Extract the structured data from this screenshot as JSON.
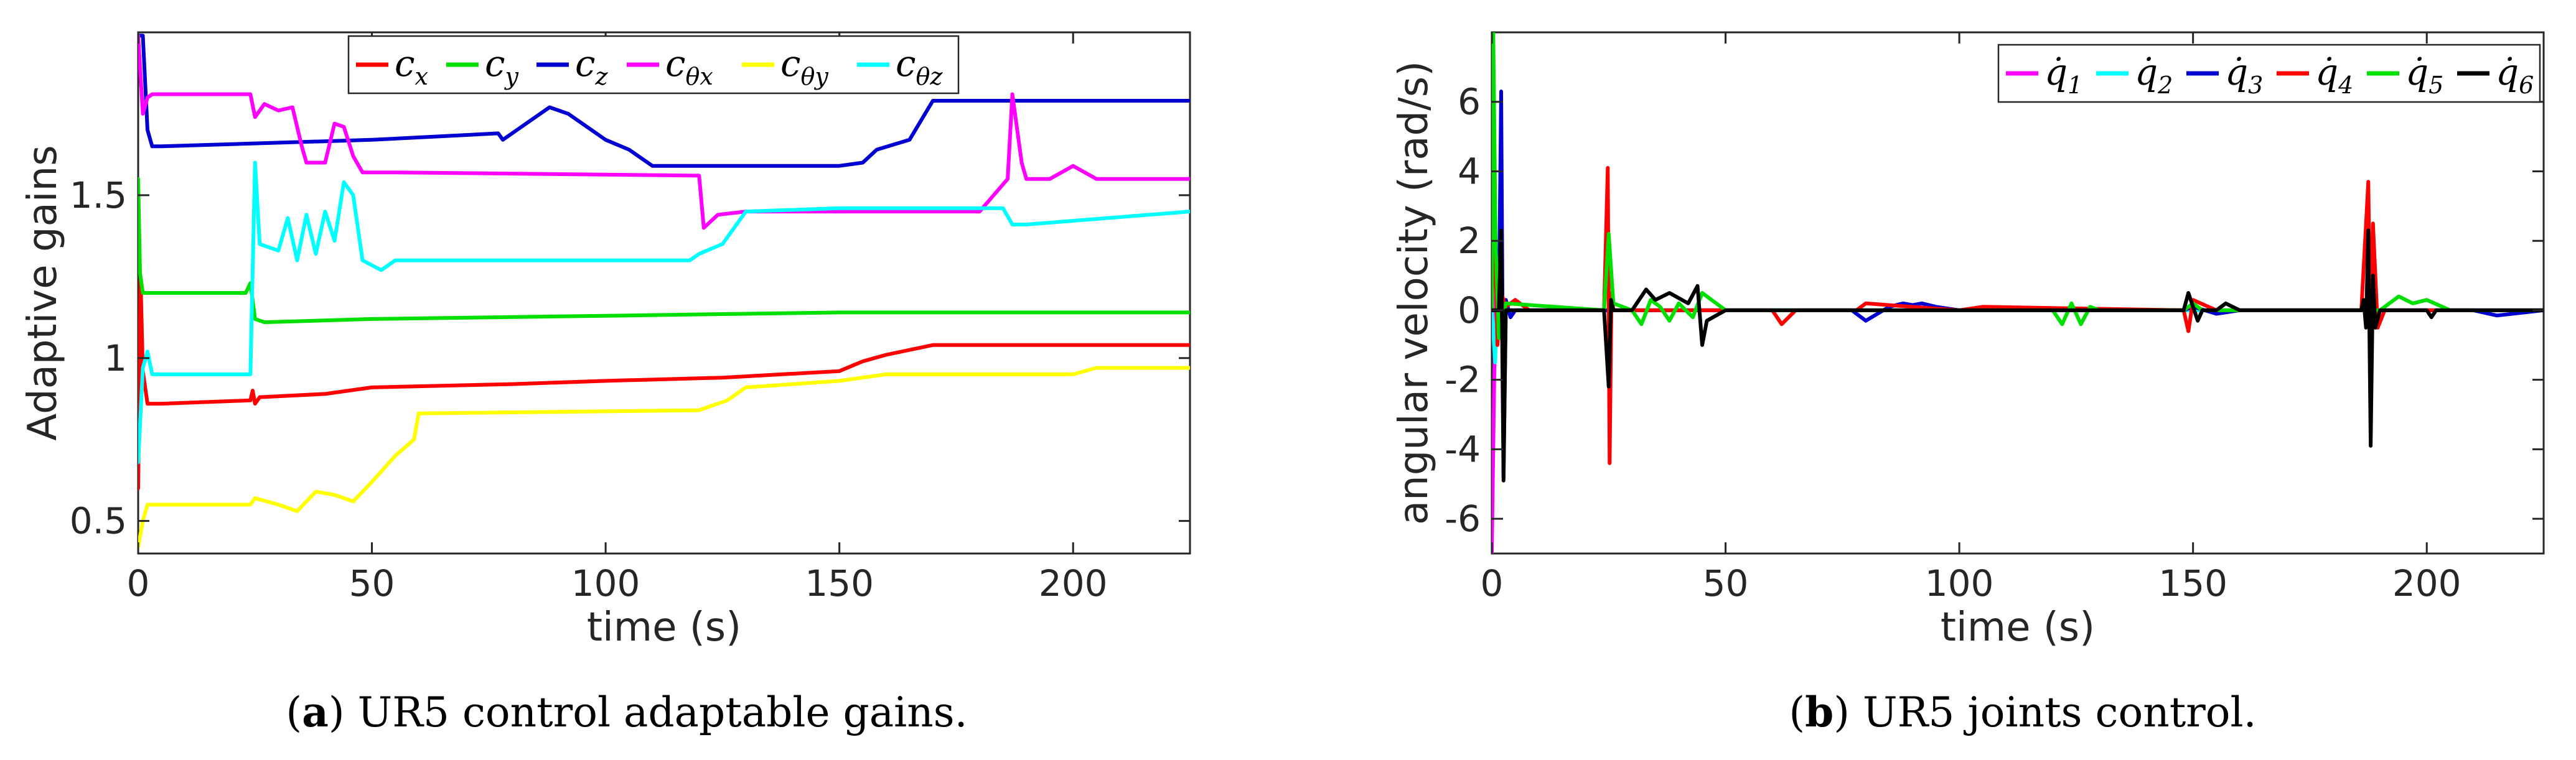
{
  "chart_data": [
    {
      "type": "line",
      "caption": {
        "letter": "a",
        "text": ") UR5 control adaptable gains."
      },
      "xlabel": "time (s)",
      "ylabel": "Adaptive gains",
      "xlim": [
        0,
        225
      ],
      "ylim": [
        0.4,
        2.0
      ],
      "xticks": [
        0,
        50,
        100,
        150,
        200
      ],
      "yticks": [
        0.5,
        1,
        1.5
      ],
      "ytick_labels": [
        "0.5",
        "1",
        "1.5"
      ],
      "legend_position": "top",
      "series": [
        {
          "name": "c_x",
          "sub": "x",
          "color": "#ff0000",
          "x": [
            0,
            0.5,
            1,
            2,
            5,
            24,
            24.5,
            25,
            26,
            40,
            50,
            80,
            100,
            125,
            150,
            155,
            160,
            170,
            225
          ],
          "y": [
            0.6,
            1.25,
            0.96,
            0.86,
            0.86,
            0.87,
            0.9,
            0.86,
            0.88,
            0.89,
            0.91,
            0.92,
            0.93,
            0.94,
            0.96,
            0.99,
            1.01,
            1.04,
            1.04
          ]
        },
        {
          "name": "c_y",
          "sub": "y",
          "color": "#00e000",
          "x": [
            0,
            0.4,
            1,
            3,
            23,
            24,
            25,
            27,
            50,
            100,
            150,
            225
          ],
          "y": [
            1.55,
            1.26,
            1.2,
            1.2,
            1.2,
            1.23,
            1.12,
            1.11,
            1.12,
            1.13,
            1.14,
            1.14
          ],
          "y_note": "starts near 1.55"
        },
        {
          "name": "c_z",
          "sub": "z",
          "color": "#0000d0",
          "x": [
            0,
            1,
            2,
            3,
            5,
            50,
            77,
            78,
            85,
            88,
            92,
            100,
            105,
            110,
            150,
            155,
            158,
            165,
            170,
            225
          ],
          "y": [
            1.99,
            1.99,
            1.7,
            1.65,
            1.65,
            1.67,
            1.69,
            1.67,
            1.74,
            1.77,
            1.75,
            1.67,
            1.64,
            1.59,
            1.59,
            1.6,
            1.64,
            1.67,
            1.79,
            1.79
          ]
        },
        {
          "name": "c_θx",
          "sub": "θx",
          "color": "#ff00ff",
          "x": [
            0,
            1,
            2,
            3,
            24,
            25,
            27,
            30,
            33,
            35,
            36,
            40,
            42,
            44,
            46,
            48,
            55,
            120,
            121,
            124,
            130,
            150,
            180,
            186,
            187,
            189,
            190,
            195,
            200,
            205,
            225
          ],
          "y": [
            1.99,
            1.75,
            1.8,
            1.81,
            1.81,
            1.74,
            1.78,
            1.76,
            1.77,
            1.65,
            1.6,
            1.6,
            1.72,
            1.71,
            1.62,
            1.57,
            1.57,
            1.56,
            1.4,
            1.44,
            1.45,
            1.45,
            1.45,
            1.55,
            1.81,
            1.6,
            1.55,
            1.55,
            1.59,
            1.55,
            1.55
          ]
        },
        {
          "name": "c_θy",
          "sub": "θy",
          "color": "#ffff00",
          "x": [
            0,
            1,
            2,
            5,
            24,
            25,
            30,
            34,
            38,
            42,
            46,
            50,
            55,
            59,
            60,
            120,
            126,
            130,
            150,
            160,
            200,
            205,
            225
          ],
          "y": [
            0.42,
            0.5,
            0.55,
            0.55,
            0.55,
            0.57,
            0.55,
            0.53,
            0.59,
            0.58,
            0.56,
            0.62,
            0.7,
            0.75,
            0.83,
            0.84,
            0.87,
            0.91,
            0.93,
            0.95,
            0.95,
            0.97,
            0.97
          ]
        },
        {
          "name": "c_θz",
          "sub": "θz",
          "color": "#00ffff",
          "x": [
            0,
            1,
            2,
            3,
            5,
            24,
            25,
            26,
            30,
            32,
            34,
            36,
            38,
            40,
            42,
            44,
            46,
            48,
            52,
            55,
            60,
            100,
            118,
            120,
            125,
            130,
            150,
            185,
            187,
            190,
            225
          ],
          "y": [
            0.68,
            0.97,
            1.02,
            0.95,
            0.95,
            0.95,
            1.6,
            1.35,
            1.33,
            1.43,
            1.3,
            1.44,
            1.32,
            1.45,
            1.36,
            1.54,
            1.5,
            1.3,
            1.27,
            1.3,
            1.3,
            1.3,
            1.3,
            1.32,
            1.35,
            1.45,
            1.46,
            1.46,
            1.41,
            1.41,
            1.45
          ]
        }
      ]
    },
    {
      "type": "line",
      "caption": {
        "letter": "b",
        "text": ") UR5 joints control."
      },
      "xlabel": "time (s)",
      "ylabel": "angular velocity (rad/s)",
      "xlim": [
        0,
        225
      ],
      "ylim": [
        -7,
        8
      ],
      "xticks": [
        0,
        50,
        100,
        150,
        200
      ],
      "yticks": [
        -6,
        -4,
        -2,
        0,
        2,
        4,
        6
      ],
      "ytick_labels": [
        "-6",
        "-4",
        "-2",
        "0",
        "2",
        "4",
        "6"
      ],
      "legend_position": "top-right",
      "series": [
        {
          "name": "q̇1",
          "sub": "1",
          "color": "#ff00ff",
          "x": [
            0,
            0.5,
            1,
            1.5,
            2,
            3,
            225
          ],
          "y": [
            -7,
            -2,
            1,
            -0.5,
            0.1,
            0,
            0
          ]
        },
        {
          "name": "q̇2",
          "sub": "2",
          "color": "#00ffff",
          "x": [
            0,
            0.7,
            1.3,
            2,
            3,
            225
          ],
          "y": [
            0,
            -1.5,
            1,
            -0.3,
            0,
            0
          ]
        },
        {
          "name": "q̇3",
          "sub": "3",
          "color": "#0000d0",
          "x": [
            0,
            1.5,
            2,
            2.5,
            3,
            4,
            5,
            25,
            77,
            80,
            85,
            88,
            90,
            92,
            95,
            100,
            148,
            150,
            155,
            160,
            210,
            215,
            225
          ],
          "y": [
            0,
            0,
            6.3,
            -4.8,
            0.3,
            -0.2,
            0,
            0,
            0,
            -0.3,
            0.1,
            0.2,
            0.15,
            0.2,
            0.1,
            0,
            0,
            0.1,
            -0.1,
            0,
            0,
            -0.15,
            0
          ]
        },
        {
          "name": "q̇4",
          "sub": "4",
          "color": "#ff0000",
          "x": [
            0,
            0.6,
            1.2,
            2,
            3,
            5,
            8,
            24,
            24.8,
            25.2,
            25.6,
            26,
            60,
            62,
            65,
            78,
            80,
            100,
            105,
            148,
            149,
            150,
            155,
            160,
            186,
            187.5,
            188,
            188.5,
            189.5,
            191,
            225
          ],
          "y": [
            0,
            3.2,
            -1,
            0.5,
            0.1,
            0.3,
            0,
            0,
            4.1,
            -4.4,
            0.5,
            0,
            0,
            -0.4,
            0,
            0,
            0.2,
            0,
            0.1,
            0,
            -0.6,
            0.3,
            0,
            0,
            0,
            3.7,
            -1.5,
            2.5,
            -0.5,
            0,
            0
          ]
        },
        {
          "name": "q̇5",
          "sub": "5",
          "color": "#00e000",
          "x": [
            0,
            0.3,
            0.8,
            1.5,
            3,
            24,
            25,
            26,
            30,
            32,
            34,
            36,
            38,
            40,
            43,
            45,
            50,
            120,
            122,
            124,
            126,
            128,
            130,
            148,
            150,
            152,
            190,
            194,
            197,
            200,
            205,
            225
          ],
          "y": [
            0,
            8,
            2,
            -0.8,
            0.2,
            0,
            2.2,
            0.2,
            0,
            -0.4,
            0.3,
            0.1,
            -0.3,
            0.2,
            -0.2,
            0.5,
            0,
            0,
            -0.4,
            0.2,
            -0.4,
            0.1,
            0,
            0,
            0.2,
            0,
            0,
            0.4,
            0.2,
            0.3,
            0,
            0
          ]
        },
        {
          "name": "q̇6",
          "sub": "6",
          "color": "#000000",
          "x": [
            0,
            1.5,
            2,
            2.5,
            3,
            24,
            25,
            25.5,
            26,
            30,
            33,
            35,
            38,
            42,
            44,
            45,
            46,
            50,
            60,
            148,
            149,
            150,
            151,
            152,
            155,
            157,
            160,
            186,
            186.5,
            187,
            187.5,
            188,
            188.5,
            189,
            190,
            200,
            201,
            202,
            225
          ],
          "y": [
            0,
            0,
            2.3,
            -4.9,
            0,
            0,
            -2.2,
            0.3,
            0,
            0,
            0.6,
            0.3,
            0.5,
            0.2,
            0.7,
            -1,
            -0.3,
            0,
            0,
            0,
            0.5,
            0.1,
            -0.3,
            0,
            0,
            0.2,
            0,
            0,
            0.3,
            -0.5,
            2.3,
            -3.9,
            1,
            -0.5,
            0,
            0,
            -0.2,
            0,
            0
          ]
        }
      ]
    }
  ]
}
